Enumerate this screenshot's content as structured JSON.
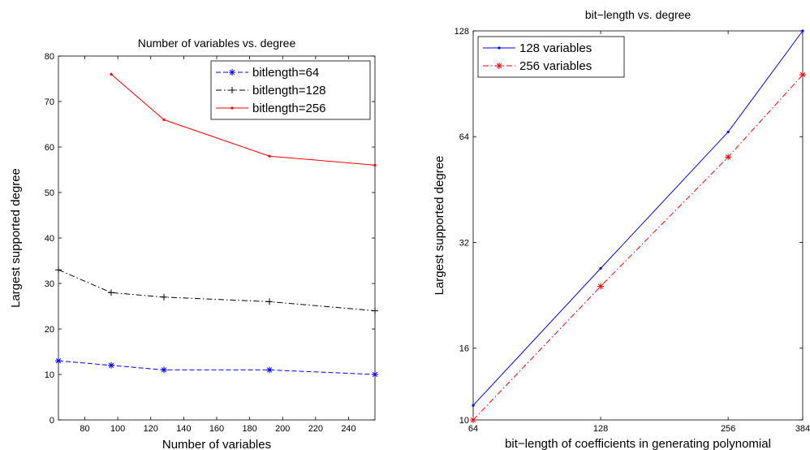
{
  "chart_data": [
    {
      "type": "line",
      "title": "Number of variables vs. degree",
      "xlabel": "Number of variables",
      "ylabel": "Largest supported degree",
      "xlim": [
        64,
        256
      ],
      "ylim": [
        0,
        80
      ],
      "xticks": [
        80,
        100,
        120,
        140,
        160,
        180,
        200,
        220,
        240
      ],
      "yticks": [
        0,
        10,
        20,
        30,
        40,
        50,
        60,
        70,
        80
      ],
      "legend_position": "top-right",
      "grid": false,
      "series": [
        {
          "name": "bitlength=64",
          "color": "#0000ff",
          "dash": "dashed",
          "marker": "asterisk",
          "x": [
            64,
            96,
            128,
            192,
            256
          ],
          "y": [
            13,
            12,
            11,
            11,
            10
          ]
        },
        {
          "name": "bitlength=128",
          "color": "#000000",
          "dash": "dashdot",
          "marker": "plus",
          "x": [
            64,
            96,
            128,
            192,
            256
          ],
          "y": [
            33,
            28,
            27,
            26,
            24
          ]
        },
        {
          "name": "bitlength=256",
          "color": "#ff0000",
          "dash": "solid",
          "marker": "dot",
          "x": [
            96,
            128,
            192,
            256
          ],
          "y": [
            76,
            66,
            58,
            56
          ]
        }
      ]
    },
    {
      "type": "line",
      "title": "bit−length vs. degree",
      "xlabel": "bit−length of coefficients in generating polynomial",
      "ylabel": "Largest supported degree",
      "xscale": "log2",
      "yscale": "log2",
      "xlim": [
        64,
        384
      ],
      "ylim": [
        10,
        128
      ],
      "xticks": [
        64,
        128,
        256,
        384
      ],
      "yticks": [
        10,
        16,
        32,
        64,
        128
      ],
      "legend_position": "top-left",
      "grid": false,
      "series": [
        {
          "name": "128 variables",
          "color": "#0000ff",
          "dash": "solid",
          "marker": "dot",
          "x": [
            64,
            128,
            256,
            384
          ],
          "y": [
            11,
            27,
            66,
            128
          ]
        },
        {
          "name": "256 variables",
          "color": "#ff0000",
          "dash": "dashdot",
          "marker": "asterisk",
          "x": [
            64,
            128,
            256,
            384
          ],
          "y": [
            10,
            24,
            56,
            96
          ]
        }
      ]
    }
  ]
}
